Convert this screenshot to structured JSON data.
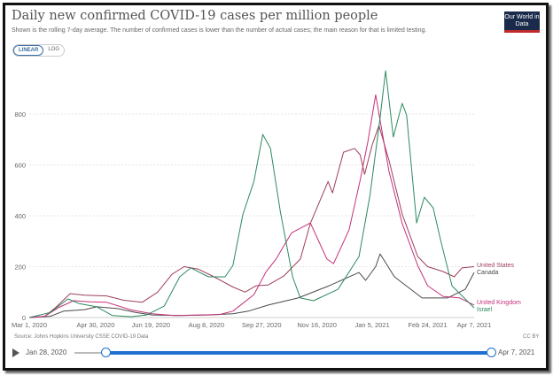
{
  "header": {
    "title": "Daily new confirmed COVID-19 cases per million people",
    "subtitle": "Shown is the rolling 7-day average. The number of confirmed cases is lower than the number of actual cases; the main reason for that is limited testing.",
    "logo": "Our World in Data",
    "toggle": {
      "linear": "LINEAR",
      "log": "LOG",
      "selected": "LINEAR"
    }
  },
  "footer": {
    "source": "Source: Johns Hopkins University CSSE COVID-19 Data",
    "license": "CC BY",
    "timeline": {
      "start": "Jan 28, 2020",
      "end": "Apr 7, 2021",
      "play_icon": "play-icon"
    }
  },
  "chart_data": {
    "type": "line",
    "title": "Daily new confirmed COVID-19 cases per million people",
    "xlim": [
      "2020-03-01",
      "2021-04-07"
    ],
    "ylim": [
      0,
      1000
    ],
    "yticks": [
      0,
      200,
      400,
      600,
      800
    ],
    "xticks": [
      "Mar 1, 2020",
      "Apr 30, 2020",
      "Jun 19, 2020",
      "Aug 8, 2020",
      "Sep 27, 2020",
      "Nov 16, 2020",
      "Jan 5, 2021",
      "Feb 24, 2021",
      "Apr 7, 2021"
    ],
    "xtick_dates": [
      "2020-03-01",
      "2020-04-30",
      "2020-06-19",
      "2020-08-08",
      "2020-09-27",
      "2020-11-16",
      "2021-01-05",
      "2021-02-24",
      "2021-04-07"
    ],
    "grid": true,
    "legend": "inline-right",
    "series": [
      {
        "name": "United States",
        "color": "#9c3f5a",
        "points": [
          [
            "2020-03-01",
            0
          ],
          [
            "2020-03-15",
            5
          ],
          [
            "2020-03-25",
            40
          ],
          [
            "2020-04-07",
            94
          ],
          [
            "2020-04-20",
            88
          ],
          [
            "2020-05-10",
            85
          ],
          [
            "2020-05-25",
            68
          ],
          [
            "2020-06-11",
            60
          ],
          [
            "2020-06-25",
            100
          ],
          [
            "2020-07-08",
            170
          ],
          [
            "2020-07-19",
            200
          ],
          [
            "2020-08-01",
            190
          ],
          [
            "2020-08-15",
            160
          ],
          [
            "2020-09-01",
            120
          ],
          [
            "2020-09-12",
            100
          ],
          [
            "2020-09-22",
            125
          ],
          [
            "2020-10-03",
            128
          ],
          [
            "2020-10-17",
            163
          ],
          [
            "2020-11-01",
            230
          ],
          [
            "2020-11-10",
            370
          ],
          [
            "2020-11-26",
            535
          ],
          [
            "2020-11-30",
            490
          ],
          [
            "2020-12-10",
            650
          ],
          [
            "2020-12-20",
            665
          ],
          [
            "2020-12-25",
            640
          ],
          [
            "2020-12-29",
            563
          ],
          [
            "2021-01-05",
            680
          ],
          [
            "2021-01-11",
            755
          ],
          [
            "2021-01-20",
            620
          ],
          [
            "2021-02-01",
            407
          ],
          [
            "2021-02-15",
            240
          ],
          [
            "2021-02-24",
            200
          ],
          [
            "2021-03-10",
            181
          ],
          [
            "2021-03-20",
            160
          ],
          [
            "2021-03-27",
            195
          ],
          [
            "2021-04-07",
            200
          ]
        ]
      },
      {
        "name": "Canada",
        "color": "#4a4a4a",
        "points": [
          [
            "2020-03-01",
            0
          ],
          [
            "2020-03-20",
            5
          ],
          [
            "2020-04-01",
            25
          ],
          [
            "2020-04-20",
            31
          ],
          [
            "2020-05-01",
            42
          ],
          [
            "2020-05-20",
            35
          ],
          [
            "2020-06-05",
            20
          ],
          [
            "2020-06-20",
            10
          ],
          [
            "2020-07-15",
            8
          ],
          [
            "2020-08-10",
            10
          ],
          [
            "2020-09-01",
            15
          ],
          [
            "2020-09-15",
            25
          ],
          [
            "2020-10-03",
            49
          ],
          [
            "2020-10-30",
            77
          ],
          [
            "2020-11-27",
            125
          ],
          [
            "2020-12-24",
            177
          ],
          [
            "2020-12-30",
            146
          ],
          [
            "2021-01-08",
            200
          ],
          [
            "2021-01-12",
            250
          ],
          [
            "2021-01-25",
            160
          ],
          [
            "2021-02-19",
            77
          ],
          [
            "2021-03-14",
            77
          ],
          [
            "2021-03-30",
            111
          ],
          [
            "2021-04-07",
            177
          ]
        ]
      },
      {
        "name": "United Kingdom",
        "color": "#c4307a",
        "points": [
          [
            "2020-03-01",
            0
          ],
          [
            "2020-03-15",
            5
          ],
          [
            "2020-03-28",
            40
          ],
          [
            "2020-04-10",
            66
          ],
          [
            "2020-04-25",
            62
          ],
          [
            "2020-05-10",
            60
          ],
          [
            "2020-06-01",
            30
          ],
          [
            "2020-06-20",
            15
          ],
          [
            "2020-07-10",
            8
          ],
          [
            "2020-08-01",
            10
          ],
          [
            "2020-08-20",
            12
          ],
          [
            "2020-09-01",
            25
          ],
          [
            "2020-09-20",
            90
          ],
          [
            "2020-10-01",
            180
          ],
          [
            "2020-10-10",
            230
          ],
          [
            "2020-10-24",
            333
          ],
          [
            "2020-11-10",
            372
          ],
          [
            "2020-11-25",
            230
          ],
          [
            "2020-12-01",
            212
          ],
          [
            "2020-12-15",
            345
          ],
          [
            "2020-12-25",
            540
          ],
          [
            "2021-01-01",
            692
          ],
          [
            "2021-01-08",
            876
          ],
          [
            "2021-01-20",
            577
          ],
          [
            "2021-02-01",
            370
          ],
          [
            "2021-02-15",
            205
          ],
          [
            "2021-02-24",
            125
          ],
          [
            "2021-03-10",
            83
          ],
          [
            "2021-03-25",
            77
          ],
          [
            "2021-04-07",
            49
          ]
        ]
      },
      {
        "name": "Israel",
        "color": "#2b8a5f",
        "points": [
          [
            "2020-03-01",
            0
          ],
          [
            "2020-03-20",
            20
          ],
          [
            "2020-04-05",
            73
          ],
          [
            "2020-04-15",
            55
          ],
          [
            "2020-05-01",
            42
          ],
          [
            "2020-05-15",
            8
          ],
          [
            "2020-06-01",
            3
          ],
          [
            "2020-06-15",
            10
          ],
          [
            "2020-07-01",
            45
          ],
          [
            "2020-07-15",
            160
          ],
          [
            "2020-07-25",
            195
          ],
          [
            "2020-08-10",
            160
          ],
          [
            "2020-08-25",
            160
          ],
          [
            "2020-09-01",
            205
          ],
          [
            "2020-09-10",
            405
          ],
          [
            "2020-09-20",
            535
          ],
          [
            "2020-09-28",
            720
          ],
          [
            "2020-10-05",
            665
          ],
          [
            "2020-10-14",
            413
          ],
          [
            "2020-10-25",
            160
          ],
          [
            "2020-11-01",
            77
          ],
          [
            "2020-11-13",
            66
          ],
          [
            "2020-12-05",
            111
          ],
          [
            "2020-12-24",
            240
          ],
          [
            "2021-01-03",
            483
          ],
          [
            "2021-01-12",
            786
          ],
          [
            "2021-01-17",
            970
          ],
          [
            "2021-01-24",
            710
          ],
          [
            "2021-02-01",
            842
          ],
          [
            "2021-02-05",
            797
          ],
          [
            "2021-02-14",
            372
          ],
          [
            "2021-02-21",
            473
          ],
          [
            "2021-03-01",
            431
          ],
          [
            "2021-03-08",
            300
          ],
          [
            "2021-03-18",
            125
          ],
          [
            "2021-04-07",
            38
          ]
        ]
      }
    ]
  }
}
